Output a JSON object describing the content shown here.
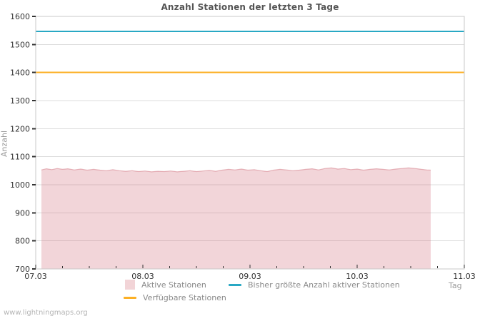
{
  "watermark": "www.lightningmaps.org",
  "colors": {
    "background": "#ffffff",
    "grid": "#dcdcdc",
    "plot_border": "#c8c8c8",
    "tick_mark": "#333333",
    "tick_label": "#333333",
    "title": "#555555",
    "axis_name": "#999999",
    "legend_text": "#8a8a8a",
    "area_fill": "rgba(210,105,118,0.28)",
    "area_stroke": "rgba(205,100,112,0.45)",
    "area_legend_swatch": "#f2d4d7",
    "record_line": "#29a8c4",
    "available_line": "#fcb025",
    "watermark_text": "#b5b5b5"
  },
  "chart_data": {
    "type": "area",
    "title": "Anzahl Stationen der letzten 3 Tage",
    "xlabel": "Tag",
    "ylabel": "Anzahl",
    "ylim": [
      700,
      1600
    ],
    "xlim_days": [
      0,
      4
    ],
    "grid": true,
    "y_ticks": [
      1600,
      1500,
      1400,
      1300,
      1200,
      1100,
      1000,
      900,
      800,
      700
    ],
    "x_ticks": [
      {
        "t": 0,
        "label": "07.03"
      },
      {
        "t": 1,
        "label": "08.03"
      },
      {
        "t": 2,
        "label": "09.03"
      },
      {
        "t": 3,
        "label": "10.03"
      },
      {
        "t": 4,
        "label": "11.03"
      }
    ],
    "x_minor_step_days": 0.25,
    "series": [
      {
        "name": "Aktive Stationen",
        "type": "area",
        "points": [
          [
            0.053,
            1053
          ],
          [
            0.1,
            1057
          ],
          [
            0.15,
            1054
          ],
          [
            0.2,
            1058
          ],
          [
            0.25,
            1055
          ],
          [
            0.3,
            1057
          ],
          [
            0.36,
            1053
          ],
          [
            0.42,
            1056
          ],
          [
            0.48,
            1052
          ],
          [
            0.54,
            1055
          ],
          [
            0.6,
            1052
          ],
          [
            0.66,
            1050
          ],
          [
            0.72,
            1054
          ],
          [
            0.78,
            1050
          ],
          [
            0.84,
            1048
          ],
          [
            0.9,
            1050
          ],
          [
            0.96,
            1047
          ],
          [
            1.02,
            1049
          ],
          [
            1.08,
            1046
          ],
          [
            1.14,
            1048
          ],
          [
            1.2,
            1047
          ],
          [
            1.26,
            1049
          ],
          [
            1.32,
            1046
          ],
          [
            1.38,
            1048
          ],
          [
            1.44,
            1050
          ],
          [
            1.5,
            1047
          ],
          [
            1.56,
            1049
          ],
          [
            1.62,
            1051
          ],
          [
            1.68,
            1048
          ],
          [
            1.74,
            1052
          ],
          [
            1.8,
            1055
          ],
          [
            1.86,
            1053
          ],
          [
            1.92,
            1056
          ],
          [
            1.98,
            1052
          ],
          [
            2.04,
            1054
          ],
          [
            2.1,
            1050
          ],
          [
            2.16,
            1047
          ],
          [
            2.22,
            1052
          ],
          [
            2.28,
            1055
          ],
          [
            2.34,
            1053
          ],
          [
            2.4,
            1050
          ],
          [
            2.46,
            1052
          ],
          [
            2.52,
            1055
          ],
          [
            2.58,
            1057
          ],
          [
            2.64,
            1053
          ],
          [
            2.7,
            1058
          ],
          [
            2.76,
            1060
          ],
          [
            2.82,
            1056
          ],
          [
            2.88,
            1058
          ],
          [
            2.94,
            1054
          ],
          [
            3.0,
            1056
          ],
          [
            3.06,
            1052
          ],
          [
            3.12,
            1055
          ],
          [
            3.18,
            1057
          ],
          [
            3.24,
            1055
          ],
          [
            3.3,
            1053
          ],
          [
            3.36,
            1056
          ],
          [
            3.42,
            1058
          ],
          [
            3.48,
            1060
          ],
          [
            3.54,
            1058
          ],
          [
            3.6,
            1055
          ],
          [
            3.65,
            1053
          ],
          [
            3.687,
            1052
          ]
        ]
      },
      {
        "name": "Bisher größte Anzahl aktiver Stationen",
        "type": "hline",
        "value": 1547
      },
      {
        "name": "Verfügbare Stationen",
        "type": "hline",
        "value": 1400
      }
    ],
    "legend": {
      "position": "bottom",
      "entries": [
        {
          "label": "Aktive Stationen",
          "swatch": "square"
        },
        {
          "label": "Bisher größte Anzahl aktiver Stationen",
          "swatch": "line"
        },
        {
          "label": "Verfügbare Stationen",
          "swatch": "line"
        }
      ]
    }
  }
}
